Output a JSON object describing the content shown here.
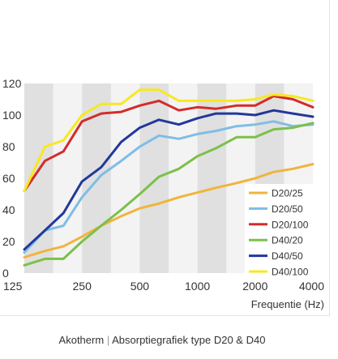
{
  "chart_data": {
    "type": "line",
    "xlabel": "Frequentie (Hz)",
    "ylabel": "",
    "x_scale": "log",
    "x_ticks": [
      125,
      250,
      500,
      1000,
      2000,
      4000
    ],
    "y_ticks": [
      0,
      20,
      40,
      60,
      80,
      100,
      120
    ],
    "ylim": [
      0,
      120
    ],
    "xlim": [
      125,
      4000
    ],
    "x": [
      125,
      160,
      200,
      250,
      315,
      400,
      500,
      630,
      800,
      1000,
      1250,
      1600,
      2000,
      2500,
      3150,
      4000
    ],
    "legend_position": "bottom-right",
    "grid": "alternating vertical bands",
    "series": [
      {
        "name": "D20/25",
        "color": "#f0b43c",
        "values": [
          10,
          14,
          17,
          23,
          30,
          36,
          41,
          44,
          48,
          51,
          54,
          57,
          60,
          64,
          66,
          69
        ]
      },
      {
        "name": "D20/50",
        "color": "#7fbde6",
        "values": [
          13,
          27,
          30,
          48,
          62,
          71,
          80,
          87,
          85,
          88,
          90,
          93,
          94,
          96,
          93,
          94
        ]
      },
      {
        "name": "D20/100",
        "color": "#d42b2b",
        "values": [
          52,
          71,
          77,
          96,
          101,
          102,
          106,
          109,
          103,
          105,
          104,
          106,
          106,
          112,
          110,
          105
        ]
      },
      {
        "name": "D40/20",
        "color": "#7cc04a",
        "values": [
          5,
          9,
          9,
          20,
          30,
          40,
          50,
          61,
          66,
          74,
          79,
          86,
          86,
          91,
          92,
          95
        ]
      },
      {
        "name": "D40/50",
        "color": "#22389a",
        "values": [
          15,
          27,
          38,
          58,
          67,
          83,
          92,
          97,
          94,
          98,
          101,
          101,
          100,
          103,
          101,
          99
        ]
      },
      {
        "name": "D40/100",
        "color": "#f8e820",
        "values": [
          52,
          80,
          84,
          100,
          107,
          107,
          116,
          116,
          109,
          109,
          109,
          109,
          110,
          113,
          112,
          109
        ]
      }
    ]
  },
  "caption": {
    "brand": "Akotherm",
    "separator": "|",
    "text": "Absorptiegrafiek type D20 & D40"
  }
}
